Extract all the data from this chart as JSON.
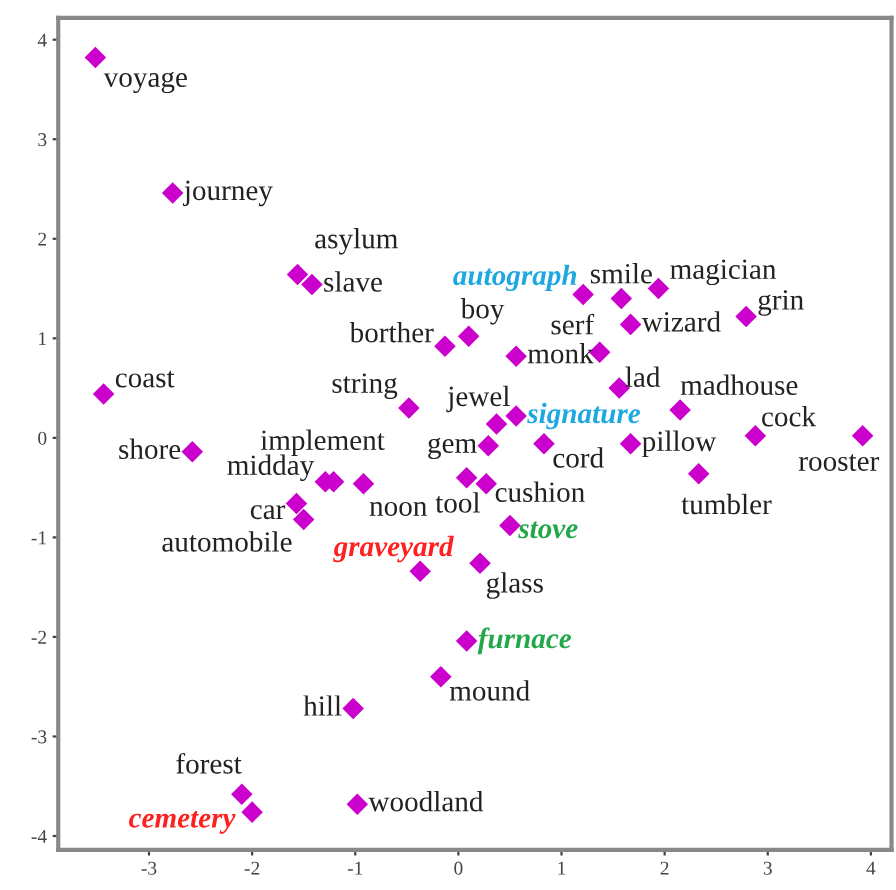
{
  "chart_data": {
    "type": "scatter",
    "marker": "diamond",
    "xlim": [
      -3.88,
      4.2
    ],
    "ylim": [
      -4.14,
      4.22
    ],
    "xticks": [
      -3,
      -2,
      -1,
      0,
      1,
      2,
      3,
      4
    ],
    "yticks": [
      -4,
      -3,
      -2,
      -1,
      0,
      1,
      2,
      3,
      4
    ],
    "series": [
      {
        "color": "#cc00cc",
        "x": [
          -3.52,
          -2.77,
          -1.56,
          -1.42,
          1.58,
          1.94,
          -0.13,
          0.1,
          1.37,
          1.67,
          2.79,
          0.56,
          -3.44,
          -0.48,
          0.37,
          1.56,
          2.15,
          2.88,
          3.92,
          -2.58,
          -1.29,
          -1.21,
          -0.92,
          -1.57,
          -1.5,
          0.29,
          0.83,
          1.67,
          2.33,
          0.08,
          0.27,
          0.21,
          -0.17,
          -1.02,
          -2.1,
          -0.98
        ],
        "values": [
          3.82,
          2.46,
          1.64,
          1.54,
          1.4,
          1.5,
          0.92,
          1.02,
          0.86,
          1.14,
          1.22,
          0.82,
          0.44,
          0.3,
          0.14,
          0.5,
          0.28,
          0.02,
          0.02,
          -0.14,
          -0.44,
          -0.44,
          -0.46,
          -0.66,
          -0.82,
          -0.08,
          -0.06,
          -0.06,
          -0.36,
          -0.4,
          -0.46,
          -1.26,
          -2.4,
          -2.72,
          -3.58,
          -3.68
        ],
        "value_labels": [
          "voyage",
          "journey",
          "asylum",
          "slave",
          "smile",
          "magician",
          "borther",
          "boy",
          "serf",
          "wizard",
          "grin",
          "monk",
          "coast",
          "string",
          "jewel",
          "lad",
          "madhouse",
          "cock",
          "rooster",
          "shore",
          "midday",
          "implement",
          "noon",
          "car",
          "automobile",
          "gem",
          "cord",
          "pillow",
          "tumbler",
          "tool",
          "cushion",
          "glass",
          "mound",
          "hill",
          "forest",
          "woodland"
        ]
      },
      {
        "color": "#cc00cc",
        "x": [
          1.21,
          0.56
        ],
        "values": [
          1.44,
          0.22
        ],
        "value_labels": [
          "autograph",
          "signature"
        ]
      },
      {
        "color": "#cc00cc",
        "x": [
          -0.37,
          -2.0
        ],
        "values": [
          -1.34,
          -3.76
        ],
        "value_labels": [
          "graveyard",
          "cemetery"
        ]
      },
      {
        "color": "#cc00cc",
        "x": [
          0.5,
          0.08
        ],
        "values": [
          -0.88,
          -2.04
        ],
        "value_labels": [
          "stove",
          "furnace"
        ]
      }
    ]
  }
}
